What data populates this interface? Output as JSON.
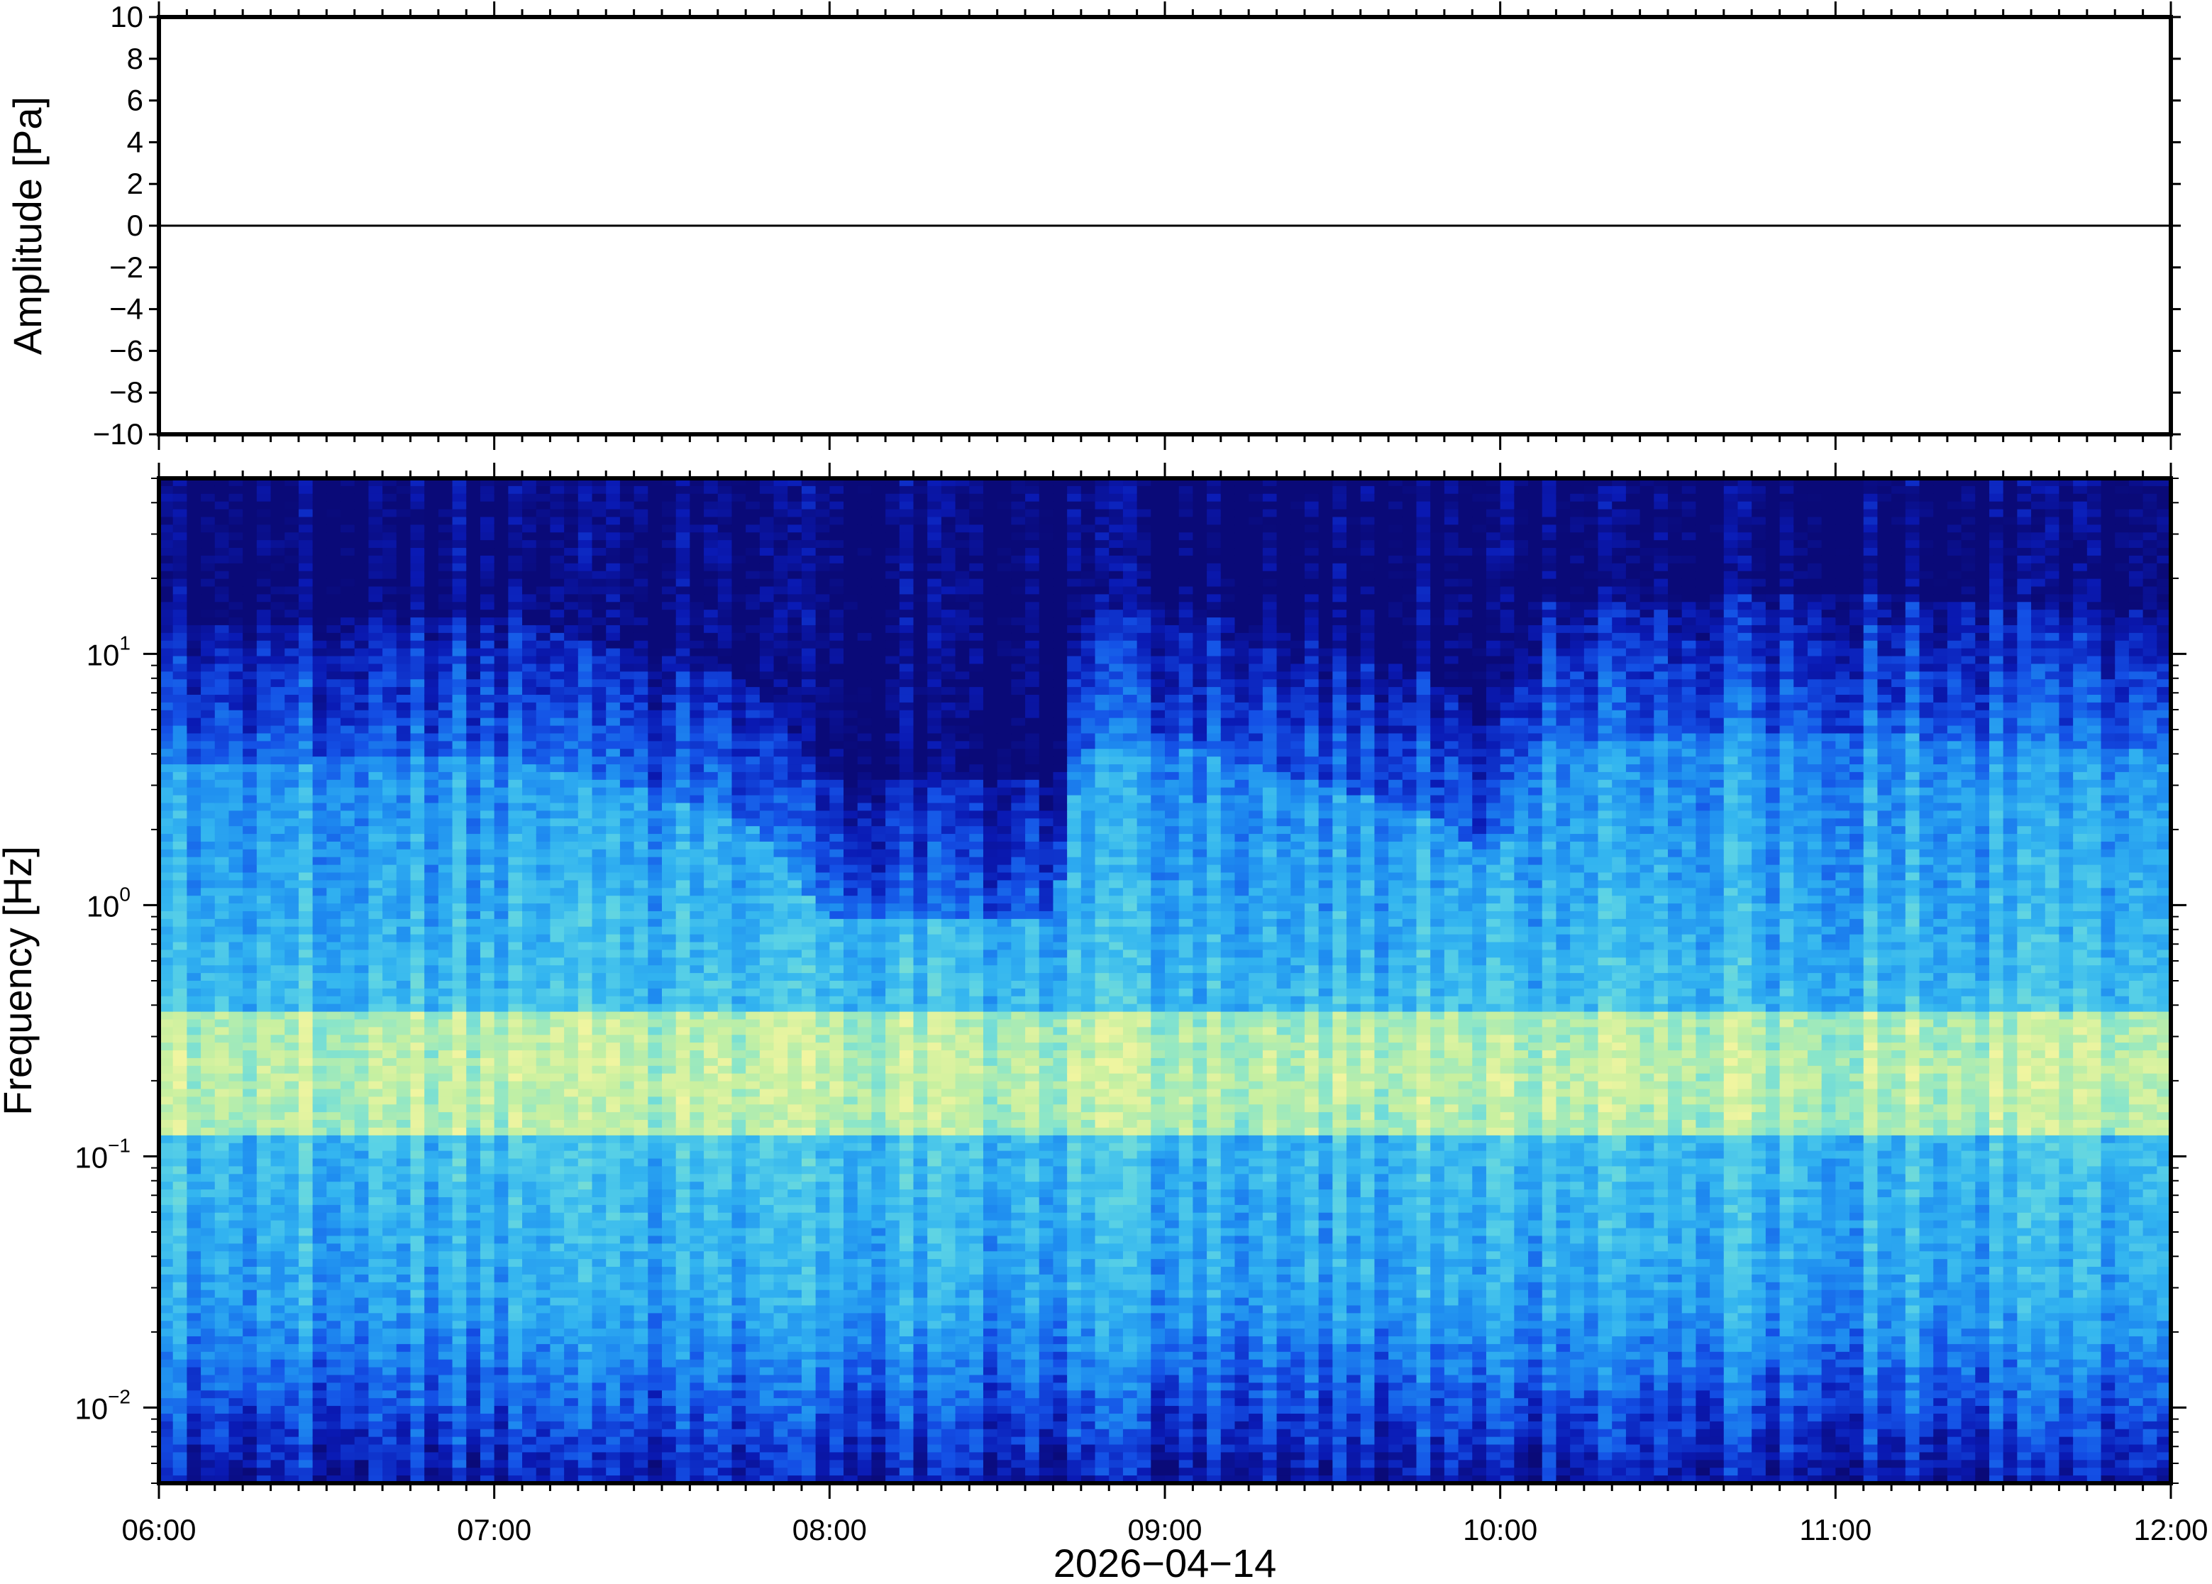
{
  "chart_data": [
    {
      "type": "line",
      "ylabel": "Amplitude [Pa]",
      "ylim": [
        -10,
        10
      ],
      "yticks": [
        10,
        8,
        6,
        4,
        2,
        0,
        -2,
        -4,
        -6,
        -8,
        -10
      ],
      "ytick_labels": [
        "10",
        "8",
        "6",
        "4",
        "2",
        "0",
        "−2",
        "−4",
        "−6",
        "−8",
        "−10"
      ],
      "series": [
        {
          "x": [
            "06:00",
            "07:00",
            "08:00",
            "09:00",
            "10:00",
            "11:00",
            "12:00"
          ],
          "values": [
            0,
            0,
            0,
            0,
            0,
            0,
            0
          ]
        }
      ],
      "line_color": "#000000"
    },
    {
      "type": "heatmap",
      "ylabel": "Frequency [Hz]",
      "yscale": "log",
      "ylim": [
        0.005,
        50
      ],
      "yticks": [
        {
          "base": "10",
          "exp": "1",
          "value": 10
        },
        {
          "base": "10",
          "exp": "0",
          "value": 1
        },
        {
          "base": "10",
          "exp": "−1",
          "value": 0.1
        },
        {
          "base": "10",
          "exp": "−2",
          "value": 0.01
        }
      ],
      "colormap": [
        "#0a0a78",
        "#0a1ab4",
        "#1450e6",
        "#1e8cf0",
        "#32b4f0",
        "#5ad2e6",
        "#8ce6c8",
        "#c8f0a0",
        "#f0f5a0"
      ],
      "band_edges": [
        {
          "time": "06:00",
          "edge_hz": 8
        },
        {
          "time": "07:00",
          "edge_hz": 9
        },
        {
          "time": "07:45",
          "edge_hz": 5
        },
        {
          "time": "08:00",
          "edge_hz": 2
        },
        {
          "time": "08:40",
          "edge_hz": 2
        },
        {
          "time": "08:45",
          "edge_hz": 9
        },
        {
          "time": "09:00",
          "edge_hz": 10
        },
        {
          "time": "09:50",
          "edge_hz": 5
        },
        {
          "time": "10:00",
          "edge_hz": 3
        },
        {
          "time": "10:05",
          "edge_hz": 10
        },
        {
          "time": "11:00",
          "edge_hz": 11
        },
        {
          "time": "12:00",
          "edge_hz": 9
        }
      ],
      "high_energy_band_hz": [
        0.15,
        0.3
      ]
    }
  ],
  "x_axis": {
    "ticks": [
      "06:00",
      "07:00",
      "08:00",
      "09:00",
      "10:00",
      "11:00",
      "12:00"
    ],
    "date_label": "2026−04−14"
  }
}
